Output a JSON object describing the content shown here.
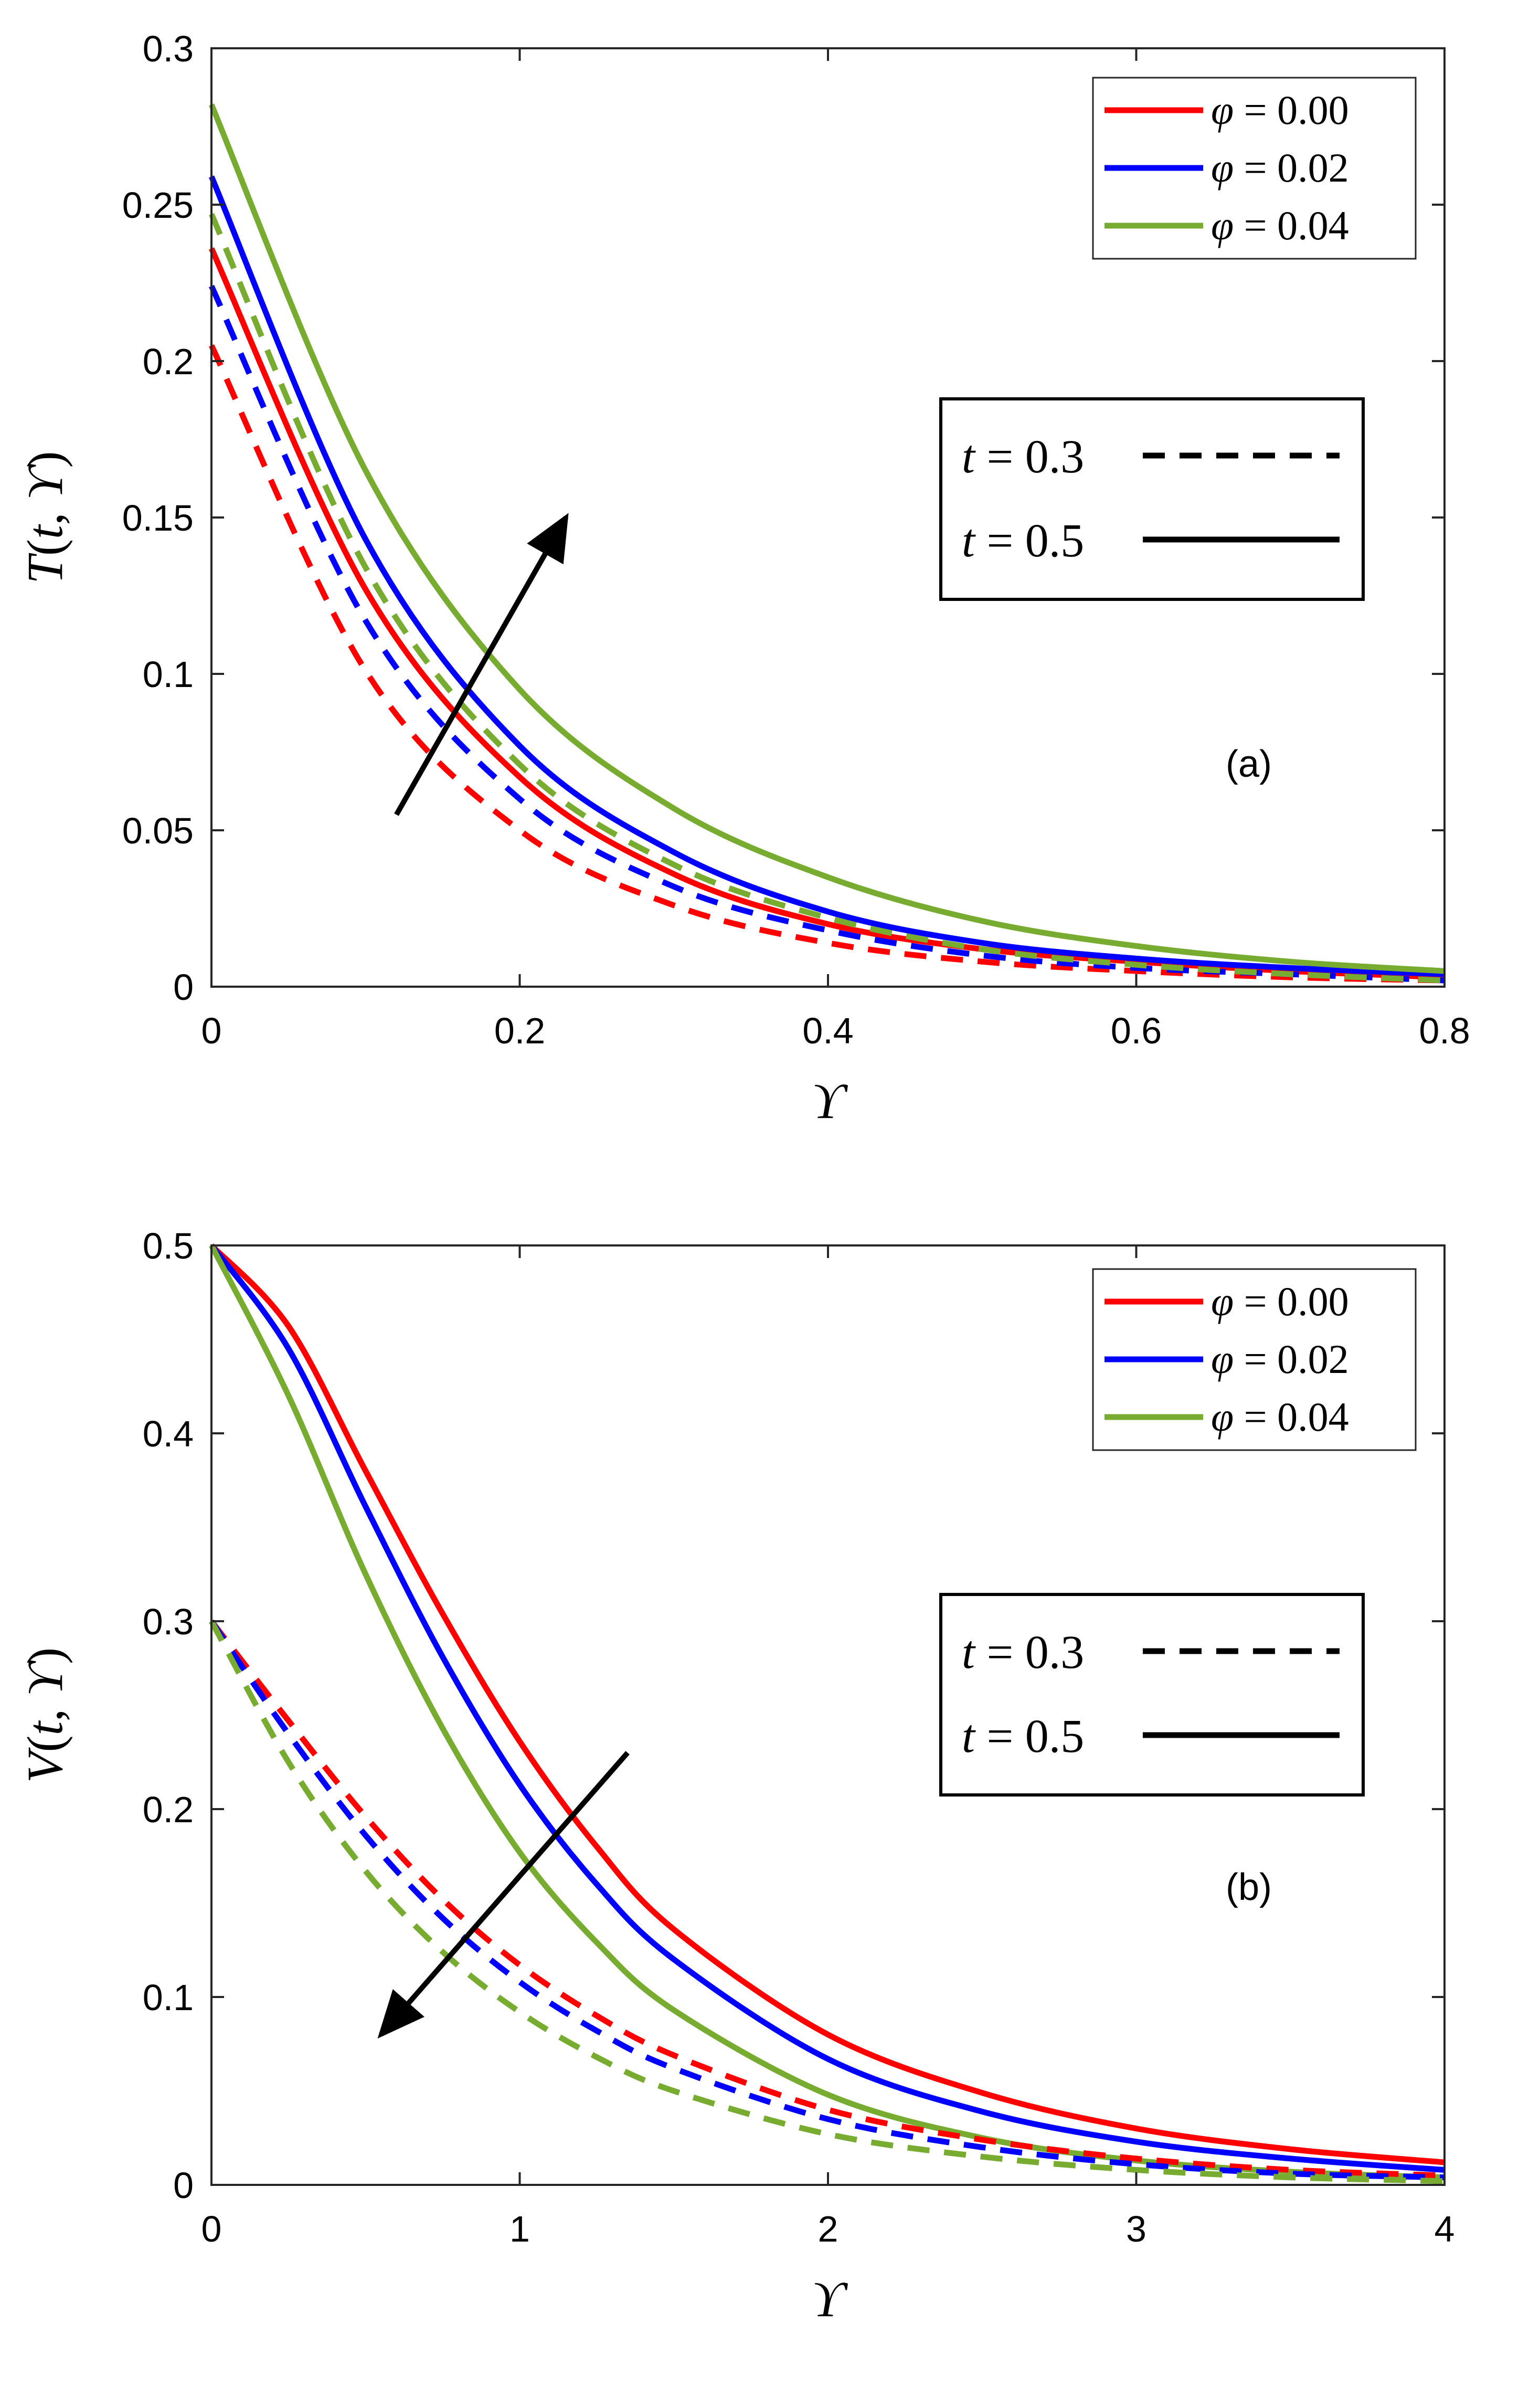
{
  "colors": {
    "phi_000": "#ff0000",
    "phi_002": "#0000ff",
    "phi_004": "#77ac30",
    "axis": "#262626",
    "arrow": "#000000"
  },
  "chart_data": [
    {
      "type": "line",
      "panel_label": "(a)",
      "xlabel": "ϒ",
      "ylabel": "T(t, ϒ)",
      "xlim": [
        0,
        0.8
      ],
      "ylim": [
        0,
        0.3
      ],
      "xticks": [
        0,
        0.2,
        0.4,
        0.6,
        0.8
      ],
      "xtick_labels": [
        "0",
        "0.2",
        "0.4",
        "0.6",
        "0.8"
      ],
      "yticks": [
        0,
        0.05,
        0.1,
        0.15,
        0.2,
        0.25,
        0.3
      ],
      "ytick_labels": [
        "0",
        "0.05",
        "0.1",
        "0.15",
        "0.2",
        "0.25",
        "0.3"
      ],
      "legend_phi": [
        "φ = 0.00",
        "φ = 0.02",
        "φ = 0.04"
      ],
      "legend_t": [
        "t = 0.3",
        "t = 0.5"
      ],
      "arrow": {
        "from": [
          0.12,
          0.055
        ],
        "to": [
          0.23,
          0.15
        ],
        "direction": "increasing φ"
      },
      "x": [
        0,
        0.1,
        0.2,
        0.3,
        0.4,
        0.5,
        0.6,
        0.7,
        0.8
      ],
      "series": [
        {
          "name": "φ = 0.00, t = 0.5",
          "color_key": "phi_000",
          "style": "solid",
          "values": [
            0.236,
            0.127,
            0.067,
            0.036,
            0.02,
            0.012,
            0.008,
            0.005,
            0.003
          ]
        },
        {
          "name": "φ = 0.02, t = 0.5",
          "color_key": "phi_002",
          "style": "solid",
          "values": [
            0.259,
            0.143,
            0.077,
            0.043,
            0.024,
            0.014,
            0.009,
            0.006,
            0.004
          ]
        },
        {
          "name": "φ = 0.04, t = 0.5",
          "color_key": "phi_004",
          "style": "solid",
          "values": [
            0.282,
            0.165,
            0.095,
            0.057,
            0.035,
            0.021,
            0.013,
            0.008,
            0.005
          ]
        },
        {
          "name": "φ = 0.00, t = 0.3",
          "color_key": "phi_000",
          "style": "dashed",
          "values": [
            0.205,
            0.101,
            0.05,
            0.026,
            0.014,
            0.008,
            0.005,
            0.003,
            0.002
          ]
        },
        {
          "name": "φ = 0.02, t = 0.3",
          "color_key": "phi_002",
          "style": "dashed",
          "values": [
            0.224,
            0.117,
            0.06,
            0.032,
            0.018,
            0.01,
            0.006,
            0.004,
            0.002
          ]
        },
        {
          "name": "φ = 0.04, t = 0.3",
          "color_key": "phi_004",
          "style": "dashed",
          "values": [
            0.247,
            0.134,
            0.071,
            0.039,
            0.022,
            0.012,
            0.007,
            0.004,
            0.002
          ]
        }
      ]
    },
    {
      "type": "line",
      "panel_label": "(b)",
      "xlabel": "ϒ",
      "ylabel": "V(t, ϒ)",
      "xlim": [
        0,
        4
      ],
      "ylim": [
        0,
        0.5
      ],
      "xticks": [
        0,
        1,
        2,
        3,
        4
      ],
      "xtick_labels": [
        "0",
        "1",
        "2",
        "3",
        "4"
      ],
      "yticks": [
        0,
        0.1,
        0.2,
        0.3,
        0.4,
        0.5
      ],
      "ytick_labels": [
        "0",
        "0.1",
        "0.2",
        "0.3",
        "0.4",
        "0.5"
      ],
      "legend_phi": [
        "φ = 0.00",
        "φ = 0.02",
        "φ = 0.04"
      ],
      "legend_t": [
        "t = 0.3",
        "t = 0.5"
      ],
      "arrow": {
        "from": [
          1.35,
          0.23
        ],
        "to": [
          0.55,
          0.08
        ],
        "direction": "increasing φ"
      },
      "x": [
        0,
        0.25,
        0.5,
        0.75,
        1.0,
        1.25,
        1.5,
        2.0,
        2.5,
        3.0,
        3.5,
        4.0
      ],
      "series": [
        {
          "name": "φ = 0.00, t = 0.5",
          "color_key": "phi_000",
          "style": "solid",
          "values": [
            0.5,
            0.457,
            0.38,
            0.304,
            0.236,
            0.18,
            0.136,
            0.08,
            0.049,
            0.03,
            0.019,
            0.012
          ]
        },
        {
          "name": "φ = 0.02, t = 0.5",
          "color_key": "phi_002",
          "style": "solid",
          "values": [
            0.5,
            0.445,
            0.361,
            0.281,
            0.213,
            0.16,
            0.12,
            0.067,
            0.039,
            0.023,
            0.014,
            0.008
          ]
        },
        {
          "name": "φ = 0.04, t = 0.5",
          "color_key": "phi_004",
          "style": "solid",
          "values": [
            0.5,
            0.42,
            0.325,
            0.243,
            0.177,
            0.129,
            0.093,
            0.048,
            0.025,
            0.013,
            0.007,
            0.004
          ]
        },
        {
          "name": "φ = 0.00, t = 0.3",
          "color_key": "phi_000",
          "style": "dashed",
          "values": [
            0.3,
            0.247,
            0.196,
            0.152,
            0.117,
            0.09,
            0.069,
            0.04,
            0.024,
            0.014,
            0.008,
            0.005
          ]
        },
        {
          "name": "φ = 0.02, t = 0.3",
          "color_key": "phi_002",
          "style": "dashed",
          "values": [
            0.3,
            0.24,
            0.186,
            0.142,
            0.108,
            0.082,
            0.062,
            0.035,
            0.02,
            0.011,
            0.006,
            0.004
          ]
        },
        {
          "name": "φ = 0.04, t = 0.3",
          "color_key": "phi_004",
          "style": "dashed",
          "values": [
            0.3,
            0.225,
            0.167,
            0.124,
            0.092,
            0.068,
            0.05,
            0.027,
            0.015,
            0.008,
            0.004,
            0.002
          ]
        }
      ]
    }
  ]
}
